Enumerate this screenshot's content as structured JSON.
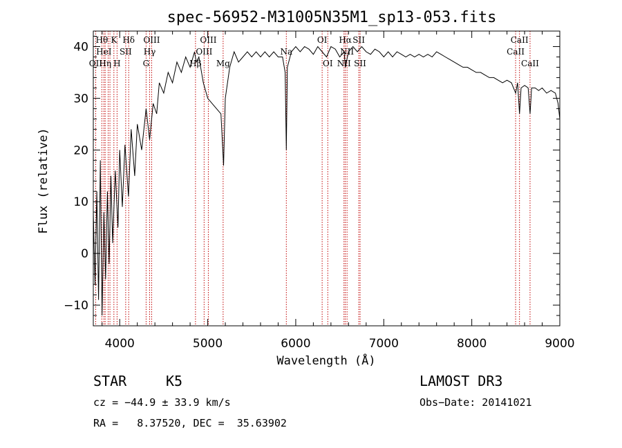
{
  "chart_data": {
    "type": "line",
    "title": "spec-56952-M31005N35M1_sp13-053.fits",
    "xlabel": "Wavelength (Å)",
    "ylabel": "Flux (relative)",
    "xlim": [
      3700,
      9000
    ],
    "ylim": [
      -14,
      43
    ],
    "xticks": [
      4000,
      5000,
      6000,
      7000,
      8000,
      9000
    ],
    "yticks": [
      -10,
      0,
      10,
      20,
      30,
      40
    ],
    "series": [
      {
        "name": "flux",
        "points": [
          [
            3700,
            8
          ],
          [
            3720,
            -6
          ],
          [
            3740,
            12
          ],
          [
            3760,
            -9
          ],
          [
            3780,
            18
          ],
          [
            3800,
            -12
          ],
          [
            3820,
            8
          ],
          [
            3840,
            -5
          ],
          [
            3860,
            12
          ],
          [
            3880,
            -2
          ],
          [
            3900,
            15
          ],
          [
            3920,
            2
          ],
          [
            3950,
            16
          ],
          [
            3980,
            5
          ],
          [
            4000,
            20
          ],
          [
            4030,
            9
          ],
          [
            4060,
            21
          ],
          [
            4100,
            11
          ],
          [
            4130,
            24
          ],
          [
            4170,
            15
          ],
          [
            4200,
            25
          ],
          [
            4250,
            20
          ],
          [
            4300,
            28
          ],
          [
            4340,
            22
          ],
          [
            4380,
            29
          ],
          [
            4420,
            27
          ],
          [
            4450,
            33
          ],
          [
            4500,
            31
          ],
          [
            4550,
            35
          ],
          [
            4600,
            33
          ],
          [
            4650,
            37
          ],
          [
            4700,
            35
          ],
          [
            4750,
            38
          ],
          [
            4800,
            36
          ],
          [
            4850,
            39
          ],
          [
            4870,
            37
          ],
          [
            4900,
            38
          ],
          [
            4950,
            33
          ],
          [
            5000,
            30
          ],
          [
            5050,
            29
          ],
          [
            5100,
            28
          ],
          [
            5150,
            27
          ],
          [
            5180,
            17
          ],
          [
            5200,
            30
          ],
          [
            5250,
            36
          ],
          [
            5300,
            39
          ],
          [
            5350,
            37
          ],
          [
            5400,
            38
          ],
          [
            5450,
            39
          ],
          [
            5500,
            38
          ],
          [
            5550,
            39
          ],
          [
            5600,
            38
          ],
          [
            5650,
            39
          ],
          [
            5700,
            38
          ],
          [
            5750,
            39
          ],
          [
            5800,
            38
          ],
          [
            5850,
            38
          ],
          [
            5880,
            35
          ],
          [
            5893,
            20
          ],
          [
            5905,
            36
          ],
          [
            5950,
            39
          ],
          [
            6000,
            40
          ],
          [
            6050,
            39
          ],
          [
            6100,
            40
          ],
          [
            6150,
            39.5
          ],
          [
            6200,
            38.5
          ],
          [
            6250,
            40
          ],
          [
            6300,
            39
          ],
          [
            6350,
            38
          ],
          [
            6400,
            40
          ],
          [
            6450,
            39.5
          ],
          [
            6500,
            38
          ],
          [
            6550,
            39
          ],
          [
            6563,
            36
          ],
          [
            6600,
            39
          ],
          [
            6650,
            40
          ],
          [
            6700,
            39
          ],
          [
            6750,
            40
          ],
          [
            6800,
            39
          ],
          [
            6850,
            38.5
          ],
          [
            6900,
            39.5
          ],
          [
            6950,
            39
          ],
          [
            7000,
            38
          ],
          [
            7050,
            39
          ],
          [
            7100,
            38
          ],
          [
            7150,
            39
          ],
          [
            7200,
            38.5
          ],
          [
            7250,
            38
          ],
          [
            7300,
            38.5
          ],
          [
            7350,
            38
          ],
          [
            7400,
            38.5
          ],
          [
            7450,
            38
          ],
          [
            7500,
            38.5
          ],
          [
            7550,
            38
          ],
          [
            7600,
            39
          ],
          [
            7650,
            38.5
          ],
          [
            7700,
            38
          ],
          [
            7750,
            37.5
          ],
          [
            7800,
            37
          ],
          [
            7850,
            36.5
          ],
          [
            7900,
            36
          ],
          [
            7950,
            36
          ],
          [
            8000,
            35.5
          ],
          [
            8050,
            35
          ],
          [
            8100,
            35
          ],
          [
            8150,
            34.5
          ],
          [
            8200,
            34
          ],
          [
            8250,
            34
          ],
          [
            8300,
            33.5
          ],
          [
            8350,
            33
          ],
          [
            8400,
            33.5
          ],
          [
            8450,
            33
          ],
          [
            8498,
            31
          ],
          [
            8520,
            33
          ],
          [
            8542,
            27
          ],
          [
            8560,
            32
          ],
          [
            8600,
            32.5
          ],
          [
            8640,
            32
          ],
          [
            8662,
            27
          ],
          [
            8680,
            32
          ],
          [
            8720,
            32
          ],
          [
            8760,
            31.5
          ],
          [
            8800,
            32
          ],
          [
            8850,
            31
          ],
          [
            8900,
            31.5
          ],
          [
            8950,
            31
          ],
          [
            8980,
            29
          ],
          [
            9000,
            26
          ]
        ]
      }
    ],
    "line_markers": [
      {
        "wl": 3727,
        "label": "OII",
        "row": 2
      },
      {
        "wl": 3797,
        "label": "Hθ",
        "row": 0
      },
      {
        "wl": 3820,
        "label": "HeI",
        "row": 1
      },
      {
        "wl": 3835,
        "label": "Hη",
        "row": 2
      },
      {
        "wl": 3869,
        "label": "",
        "row": 0
      },
      {
        "wl": 3889,
        "label": "",
        "row": 1
      },
      {
        "wl": 3934,
        "label": "K",
        "row": 0
      },
      {
        "wl": 3970,
        "label": "H",
        "row": 2
      },
      {
        "wl": 4068,
        "label": "SII",
        "row": 1
      },
      {
        "wl": 4102,
        "label": "Hδ",
        "row": 0
      },
      {
        "wl": 4300,
        "label": "G",
        "row": 2
      },
      {
        "wl": 4340,
        "label": "Hγ",
        "row": 1
      },
      {
        "wl": 4363,
        "label": "OIII",
        "row": 0
      },
      {
        "wl": 4861,
        "label": "Hβ",
        "row": 2
      },
      {
        "wl": 4959,
        "label": "OIII",
        "row": 1
      },
      {
        "wl": 5007,
        "label": "OIII",
        "row": 0
      },
      {
        "wl": 5175,
        "label": "Mg",
        "row": 2
      },
      {
        "wl": 5893,
        "label": "Na",
        "row": 1
      },
      {
        "wl": 6300,
        "label": "OI",
        "row": 0
      },
      {
        "wl": 6364,
        "label": "OI",
        "row": 2
      },
      {
        "wl": 6548,
        "label": "NII",
        "row": 2
      },
      {
        "wl": 6563,
        "label": "Hα",
        "row": 0
      },
      {
        "wl": 6583,
        "label": "NII",
        "row": 1
      },
      {
        "wl": 6716,
        "label": "SII",
        "row": 0
      },
      {
        "wl": 6731,
        "label": "SII",
        "row": 2
      },
      {
        "wl": 8498,
        "label": "CaII",
        "row": 1
      },
      {
        "wl": 8542,
        "label": "CaII",
        "row": 0
      },
      {
        "wl": 8662,
        "label": "CaII",
        "row": 2
      }
    ],
    "marker_color": "#c00000"
  },
  "info": {
    "object_class": "STAR",
    "subclass": "K5",
    "survey": "LAMOST DR3",
    "cz": "cz = −44.9 ± 33.9 km/s",
    "obs_date": "Obs−Date: 20141021",
    "coords": "RA =   8.37520, DEC =  35.63902"
  }
}
